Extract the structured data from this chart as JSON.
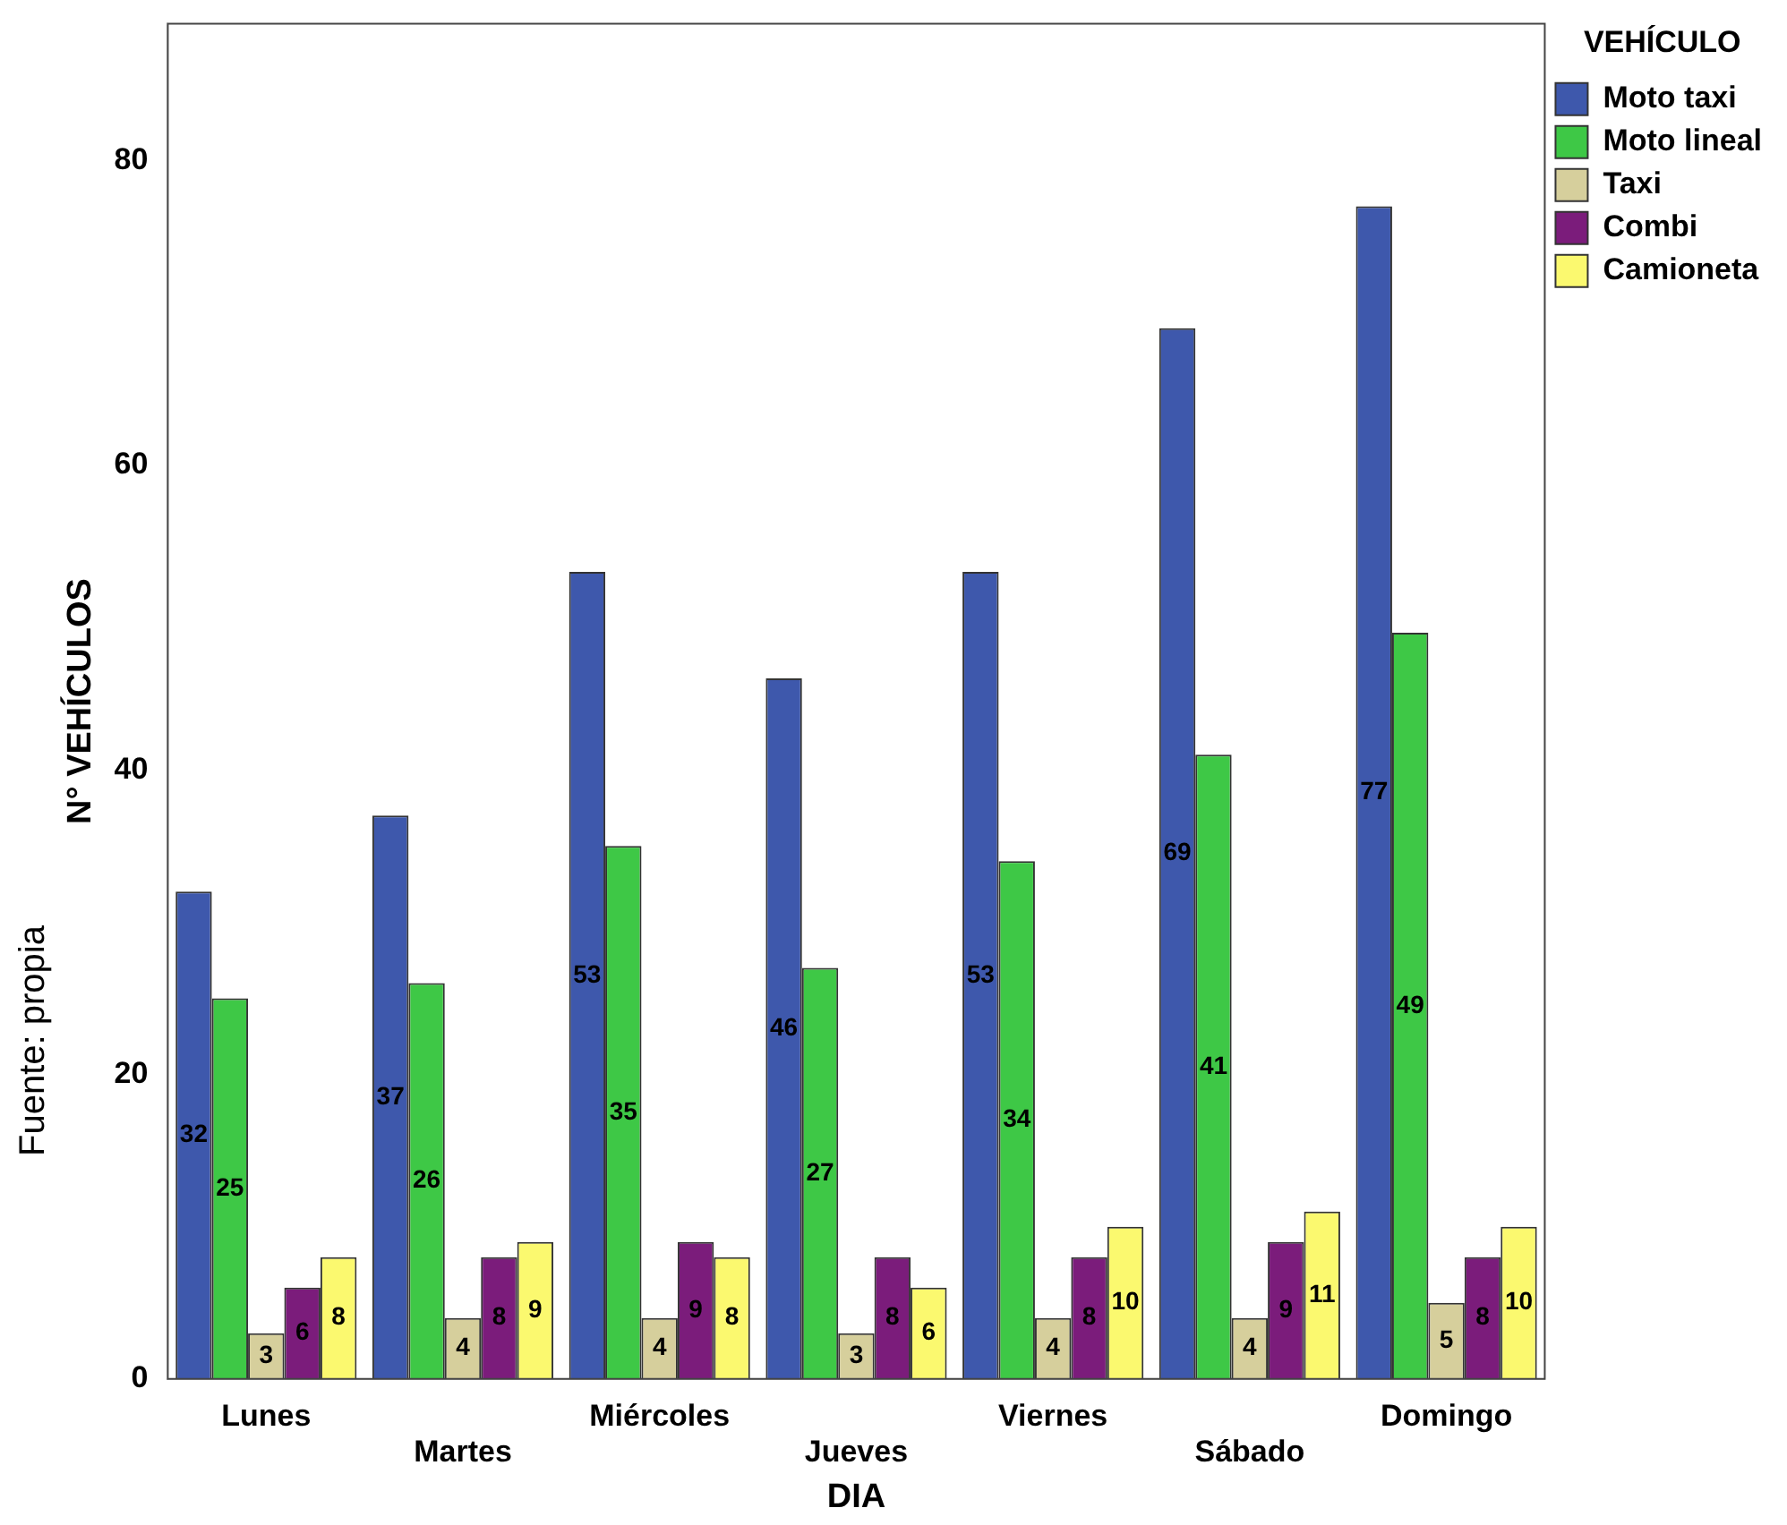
{
  "chart_data": {
    "type": "bar",
    "xlabel": "DIA",
    "ylabel": "N° VEHÍCULOS",
    "legend_title": "VEHÍCULO",
    "categories": [
      "Lunes",
      "Martes",
      "Miércoles",
      "Jueves",
      "Viernes",
      "Sábado",
      "Domingo"
    ],
    "series": [
      {
        "name": "Moto taxi",
        "color": "#3e58ac",
        "values": [
          32,
          37,
          53,
          46,
          53,
          69,
          77
        ]
      },
      {
        "name": "Moto lineal",
        "color": "#3ec846",
        "values": [
          25,
          26,
          35,
          27,
          34,
          41,
          49
        ]
      },
      {
        "name": "Taxi",
        "color": "#d6cf9c",
        "values": [
          3,
          4,
          4,
          3,
          4,
          4,
          5
        ]
      },
      {
        "name": "Combi",
        "color": "#7b1c7b",
        "values": [
          6,
          8,
          9,
          8,
          8,
          9,
          8
        ]
      },
      {
        "name": "Camioneta",
        "color": "#fbf96f",
        "values": [
          8,
          9,
          8,
          6,
          10,
          11,
          10
        ]
      }
    ],
    "ylim": [
      0,
      89
    ],
    "yticks": [
      0,
      20,
      40,
      60,
      80
    ],
    "grid": false,
    "legend": "top right",
    "data_labels": true,
    "annotations": [
      "Fuente: propia"
    ]
  }
}
